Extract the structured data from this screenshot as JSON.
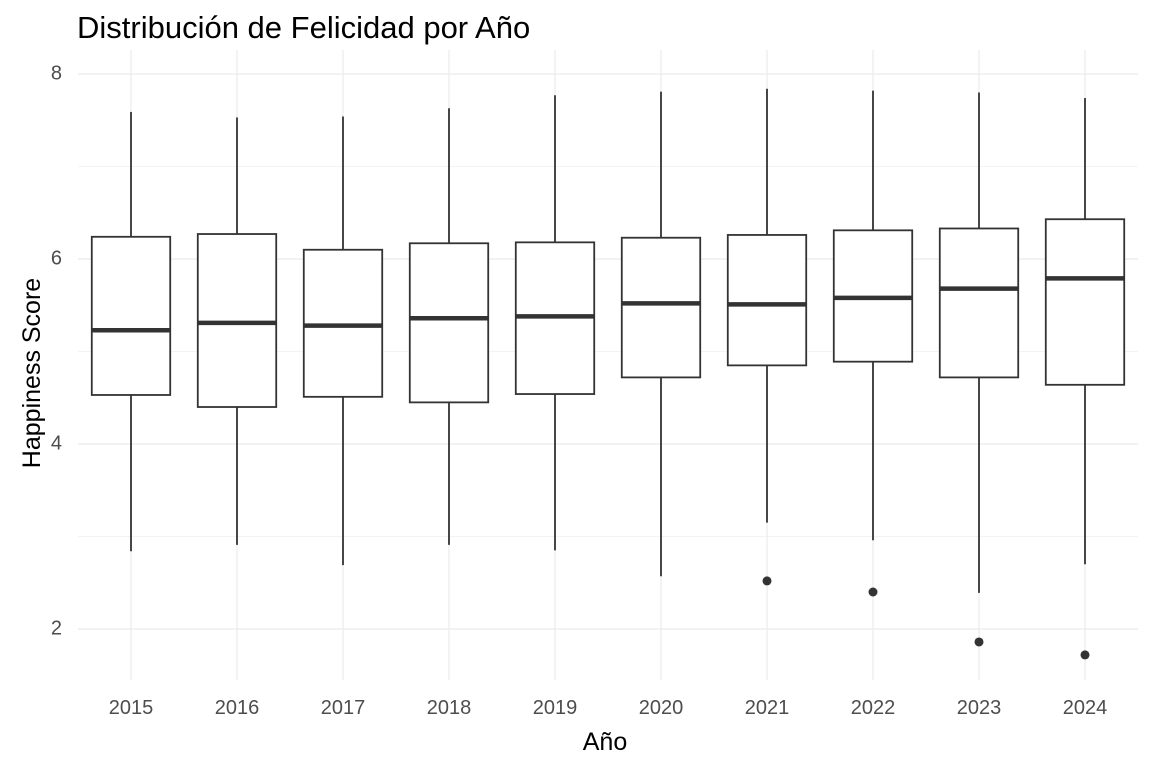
{
  "chart_data": {
    "type": "boxplot",
    "title": "Distribución de Felicidad por Año",
    "xlabel": "Año",
    "ylabel": "Happiness Score",
    "ylim": [
      1.5,
      8.0
    ],
    "yticks": [
      "2",
      "4",
      "6",
      "8"
    ],
    "categories": [
      "2015",
      "2016",
      "2017",
      "2018",
      "2019",
      "2020",
      "2021",
      "2022",
      "2023",
      "2024"
    ],
    "boxes": [
      {
        "year": "2015",
        "whisker_low": 2.84,
        "q1": 4.53,
        "median": 5.23,
        "q3": 6.24,
        "whisker_high": 7.59,
        "outliers": []
      },
      {
        "year": "2016",
        "whisker_low": 2.91,
        "q1": 4.4,
        "median": 5.31,
        "q3": 6.27,
        "whisker_high": 7.53,
        "outliers": []
      },
      {
        "year": "2017",
        "whisker_low": 2.69,
        "q1": 4.51,
        "median": 5.28,
        "q3": 6.1,
        "whisker_high": 7.54,
        "outliers": []
      },
      {
        "year": "2018",
        "whisker_low": 2.91,
        "q1": 4.45,
        "median": 5.36,
        "q3": 6.17,
        "whisker_high": 7.63,
        "outliers": []
      },
      {
        "year": "2019",
        "whisker_low": 2.85,
        "q1": 4.54,
        "median": 5.38,
        "q3": 6.18,
        "whisker_high": 7.77,
        "outliers": []
      },
      {
        "year": "2020",
        "whisker_low": 2.57,
        "q1": 4.72,
        "median": 5.52,
        "q3": 6.23,
        "whisker_high": 7.81,
        "outliers": []
      },
      {
        "year": "2021",
        "whisker_low": 3.15,
        "q1": 4.85,
        "median": 5.51,
        "q3": 6.26,
        "whisker_high": 7.84,
        "outliers": [
          2.52
        ]
      },
      {
        "year": "2022",
        "whisker_low": 2.96,
        "q1": 4.89,
        "median": 5.58,
        "q3": 6.31,
        "whisker_high": 7.82,
        "outliers": [
          2.4
        ]
      },
      {
        "year": "2023",
        "whisker_low": 2.39,
        "q1": 4.72,
        "median": 5.68,
        "q3": 6.33,
        "whisker_high": 7.8,
        "outliers": [
          1.86
        ]
      },
      {
        "year": "2024",
        "whisker_low": 2.7,
        "q1": 4.64,
        "median": 5.79,
        "q3": 6.43,
        "whisker_high": 7.74,
        "outliers": [
          1.72
        ]
      }
    ],
    "grid": true,
    "colors": {
      "box_line": "#333333",
      "grid_major": "#ebebeb",
      "grid_minor": "#f3f3f3",
      "outlier": "#333333"
    }
  }
}
